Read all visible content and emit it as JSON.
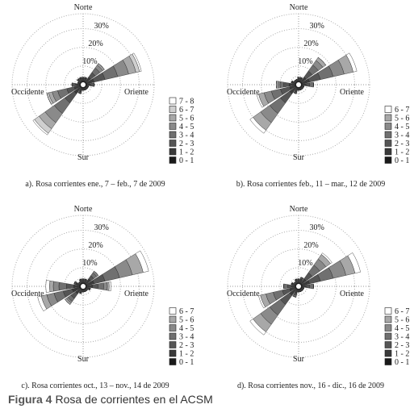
{
  "chart_data": [
    {
      "type": "rose",
      "title": "a). Rosa corrientes ene., 7 – feb., 7 de 2009",
      "direction_labels": [
        "Norte",
        "Oriente",
        "Sur",
        "Occidente"
      ],
      "x": [
        0,
        22.5,
        45,
        67.5,
        90,
        112.5,
        135,
        157.5,
        180,
        202.5,
        225,
        247.5,
        270,
        292.5,
        315,
        337.5
      ],
      "rlim": [
        0,
        38
      ],
      "rticks": [
        {
          "value": 10,
          "label": "10%"
        },
        {
          "value": 20,
          "label": "20%"
        },
        {
          "value": 30,
          "label": "30%"
        }
      ],
      "series": [
        {
          "name": "0 - 1",
          "color": "#1a1a1a",
          "values": [
            2,
            2,
            2,
            2,
            2,
            2,
            2,
            2,
            2,
            2,
            2,
            2,
            2,
            2,
            2,
            2
          ]
        },
        {
          "name": "1 - 2",
          "color": "#3a3a3a",
          "values": [
            2,
            2,
            3,
            4,
            2,
            1,
            1,
            1,
            1,
            2,
            4,
            3,
            2,
            1,
            2,
            2
          ]
        },
        {
          "name": "2 - 3",
          "color": "#555555",
          "values": [
            0,
            0,
            3,
            6,
            2,
            0,
            0,
            0,
            0,
            1,
            6,
            4,
            2,
            0,
            0,
            0
          ]
        },
        {
          "name": "3 - 4",
          "color": "#707070",
          "values": [
            0,
            0,
            3,
            7,
            0,
            0,
            0,
            0,
            0,
            0,
            7,
            5,
            0,
            0,
            0,
            0
          ]
        },
        {
          "name": "4 - 5",
          "color": "#8a8a8a",
          "values": [
            0,
            0,
            2,
            6,
            0,
            0,
            0,
            0,
            0,
            0,
            6,
            3,
            0,
            0,
            0,
            0
          ]
        },
        {
          "name": "5 - 6",
          "color": "#a8a8a8",
          "values": [
            0,
            0,
            1,
            4,
            0,
            0,
            0,
            0,
            0,
            0,
            4,
            2,
            0,
            0,
            0,
            0
          ]
        },
        {
          "name": "6 - 7",
          "color": "#cfcfcf",
          "values": [
            0,
            0,
            0,
            2,
            0,
            0,
            0,
            0,
            0,
            0,
            3,
            1,
            0,
            0,
            0,
            0
          ]
        },
        {
          "name": "7 - 8",
          "color": "#ffffff",
          "values": [
            0,
            0,
            0,
            1,
            0,
            0,
            0,
            0,
            0,
            0,
            1,
            0,
            0,
            0,
            0,
            0
          ]
        }
      ]
    },
    {
      "type": "rose",
      "title": "b). Rosa corrientes feb., 11 – mar., 12 de 2009",
      "direction_labels": [
        "Norte",
        "Oriente",
        "Sur",
        "Occidente"
      ],
      "x": [
        0,
        22.5,
        45,
        67.5,
        90,
        112.5,
        135,
        157.5,
        180,
        202.5,
        225,
        247.5,
        270,
        292.5,
        315,
        337.5
      ],
      "rlim": [
        0,
        38
      ],
      "rticks": [
        {
          "value": 10,
          "label": "10%"
        },
        {
          "value": 20,
          "label": "20%"
        },
        {
          "value": 30,
          "label": "30%"
        }
      ],
      "series": [
        {
          "name": "0 - 1",
          "color": "#1a1a1a",
          "values": [
            2,
            2,
            2,
            2,
            2,
            2,
            2,
            2,
            2,
            2,
            2,
            2,
            2,
            2,
            2,
            2
          ]
        },
        {
          "name": "1 - 2",
          "color": "#3a3a3a",
          "values": [
            2,
            2,
            3,
            4,
            2,
            1,
            1,
            1,
            1,
            2,
            4,
            3,
            3,
            2,
            1,
            1
          ]
        },
        {
          "name": "2 - 3",
          "color": "#555555",
          "values": [
            0,
            0,
            4,
            6,
            2,
            0,
            0,
            0,
            0,
            1,
            6,
            5,
            3,
            0,
            0,
            0
          ]
        },
        {
          "name": "3 - 4",
          "color": "#707070",
          "values": [
            0,
            0,
            4,
            7,
            2,
            0,
            0,
            0,
            0,
            0,
            7,
            5,
            2,
            0,
            0,
            0
          ]
        },
        {
          "name": "4 - 5",
          "color": "#8a8a8a",
          "values": [
            0,
            0,
            3,
            6,
            0,
            0,
            0,
            0,
            0,
            0,
            6,
            4,
            1,
            0,
            0,
            0
          ]
        },
        {
          "name": "5 - 6",
          "color": "#a8a8a8",
          "values": [
            0,
            0,
            2,
            5,
            0,
            0,
            0,
            0,
            0,
            0,
            5,
            3,
            1,
            0,
            0,
            0
          ]
        },
        {
          "name": "6 - 7",
          "color": "#ffffff",
          "values": [
            0,
            0,
            0,
            2,
            0,
            0,
            0,
            0,
            0,
            0,
            2,
            1,
            0,
            0,
            0,
            0
          ]
        }
      ]
    },
    {
      "type": "rose",
      "title": "c). Rosa corrientes oct., 13 – nov., 14 de 2009",
      "direction_labels": [
        "Norte",
        "Oriente",
        "Sur",
        "Occidente"
      ],
      "x": [
        0,
        22.5,
        45,
        67.5,
        90,
        112.5,
        135,
        157.5,
        180,
        202.5,
        225,
        247.5,
        270,
        292.5,
        315,
        337.5
      ],
      "rlim": [
        0,
        38
      ],
      "rticks": [
        {
          "value": 10,
          "label": "10%"
        },
        {
          "value": 20,
          "label": "20%"
        },
        {
          "value": 30,
          "label": "30%"
        }
      ],
      "series": [
        {
          "name": "0 - 1",
          "color": "#1a1a1a",
          "values": [
            2,
            2,
            2,
            2,
            2,
            2,
            2,
            2,
            2,
            2,
            2,
            2,
            2,
            2,
            2,
            2
          ]
        },
        {
          "name": "1 - 2",
          "color": "#3a3a3a",
          "values": [
            2,
            2,
            3,
            4,
            3,
            2,
            1,
            1,
            1,
            2,
            3,
            4,
            3,
            2,
            1,
            2
          ]
        },
        {
          "name": "2 - 3",
          "color": "#555555",
          "values": [
            0,
            0,
            2,
            6,
            3,
            0,
            0,
            0,
            0,
            0,
            3,
            5,
            4,
            1,
            0,
            0
          ]
        },
        {
          "name": "3 - 4",
          "color": "#707070",
          "values": [
            0,
            0,
            2,
            8,
            3,
            0,
            0,
            0,
            0,
            0,
            2,
            5,
            4,
            0,
            0,
            0
          ]
        },
        {
          "name": "4 - 5",
          "color": "#8a8a8a",
          "values": [
            0,
            0,
            1,
            7,
            2,
            0,
            0,
            0,
            0,
            0,
            1,
            4,
            3,
            0,
            0,
            0
          ]
        },
        {
          "name": "5 - 6",
          "color": "#a8a8a8",
          "values": [
            0,
            0,
            0,
            6,
            1,
            0,
            0,
            0,
            0,
            0,
            1,
            3,
            2,
            0,
            0,
            0
          ]
        },
        {
          "name": "6 - 7",
          "color": "#ffffff",
          "values": [
            0,
            0,
            0,
            3,
            1,
            0,
            0,
            0,
            0,
            0,
            0,
            2,
            2,
            0,
            0,
            0
          ]
        }
      ]
    },
    {
      "type": "rose",
      "title": "d). Rosa corrientes nov., 16 - dic., 16 de 2009",
      "direction_labels": [
        "Norte",
        "Oriente",
        "Sur",
        "Occidente"
      ],
      "x": [
        0,
        22.5,
        45,
        67.5,
        90,
        112.5,
        135,
        157.5,
        180,
        202.5,
        225,
        247.5,
        270,
        292.5,
        315,
        337.5
      ],
      "rlim": [
        0,
        38
      ],
      "rticks": [
        {
          "value": 10,
          "label": "10%"
        },
        {
          "value": 20,
          "label": "20%"
        },
        {
          "value": 30,
          "label": "30%"
        }
      ],
      "series": [
        {
          "name": "0 - 1",
          "color": "#1a1a1a",
          "values": [
            2,
            2,
            2,
            2,
            2,
            2,
            2,
            2,
            2,
            2,
            2,
            2,
            2,
            2,
            2,
            2
          ]
        },
        {
          "name": "1 - 2",
          "color": "#3a3a3a",
          "values": [
            2,
            2,
            3,
            4,
            2,
            1,
            1,
            1,
            1,
            2,
            4,
            3,
            2,
            2,
            1,
            2
          ]
        },
        {
          "name": "2 - 3",
          "color": "#555555",
          "values": [
            0,
            1,
            4,
            6,
            2,
            0,
            0,
            0,
            0,
            1,
            6,
            4,
            2,
            0,
            0,
            0
          ]
        },
        {
          "name": "3 - 4",
          "color": "#707070",
          "values": [
            0,
            0,
            5,
            7,
            2,
            0,
            0,
            0,
            0,
            1,
            7,
            5,
            2,
            0,
            0,
            0
          ]
        },
        {
          "name": "4 - 5",
          "color": "#8a8a8a",
          "values": [
            0,
            0,
            4,
            7,
            0,
            0,
            0,
            0,
            0,
            0,
            6,
            4,
            0,
            0,
            0,
            0
          ]
        },
        {
          "name": "5 - 6",
          "color": "#a8a8a8",
          "values": [
            0,
            0,
            3,
            5,
            0,
            0,
            0,
            0,
            0,
            0,
            5,
            3,
            0,
            0,
            0,
            0
          ]
        },
        {
          "name": "6 - 7",
          "color": "#ffffff",
          "values": [
            0,
            0,
            1,
            3,
            0,
            0,
            0,
            0,
            0,
            0,
            2,
            1,
            0,
            0,
            0,
            0
          ]
        }
      ]
    }
  ],
  "caption": {
    "label": "Figura 4",
    "text": "Rosa de corrientes en el ACSM"
  }
}
